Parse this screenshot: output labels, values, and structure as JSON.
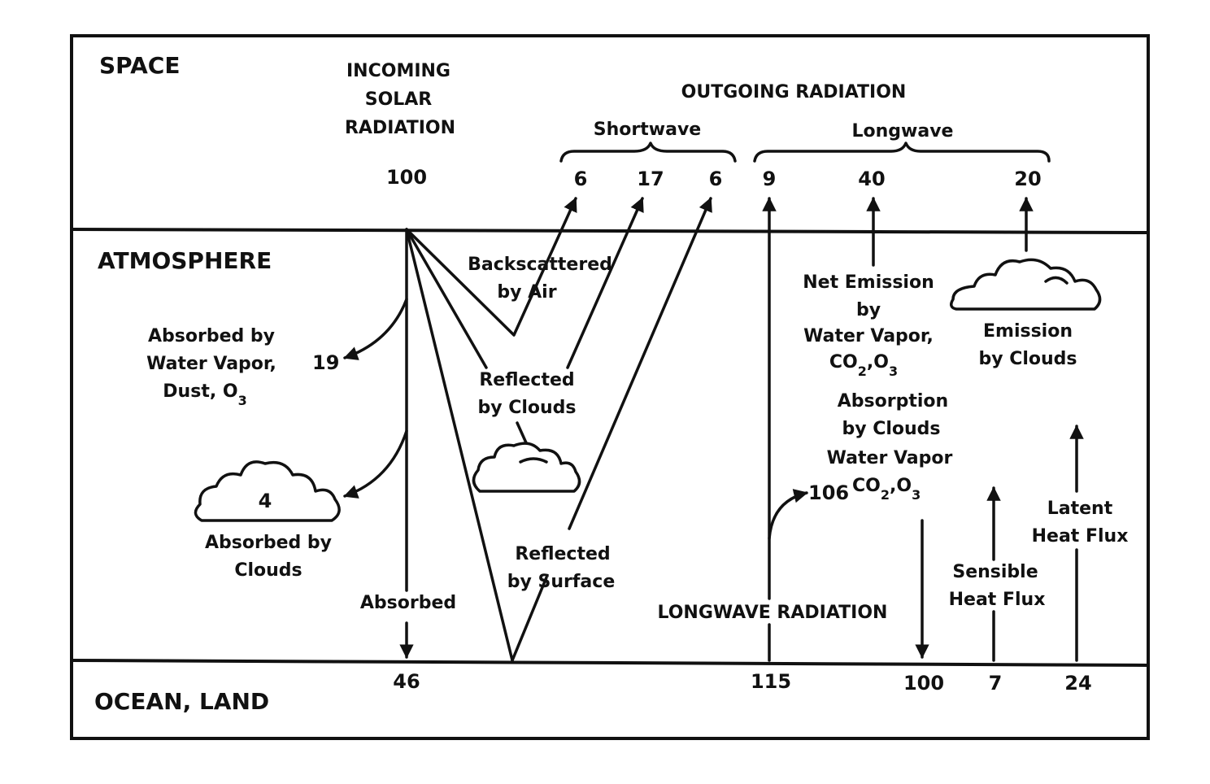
{
  "zones": {
    "space": "SPACE",
    "atmosphere": "ATMOSPHERE",
    "surface": "OCEAN, LAND"
  },
  "incoming": {
    "title": [
      "INCOMING",
      "SOLAR",
      "RADIATION"
    ],
    "value": "100"
  },
  "outgoing": {
    "title": "OUTGOING RADIATION",
    "shortwave": {
      "label": "Shortwave",
      "values": [
        "6",
        "17",
        "6"
      ]
    },
    "longwave": {
      "label": "Longwave",
      "values": [
        "9",
        "40",
        "20"
      ]
    }
  },
  "atmosphere_labels": {
    "backscattered": [
      "Backscattered",
      "by Air"
    ],
    "reflected_clouds": [
      "Reflected",
      "by Clouds"
    ],
    "absorbed_vapor": [
      "Absorbed by",
      "Water Vapor,",
      "Dust, O"
    ],
    "absorbed_vapor_sub": "3",
    "absorbed_vapor_value": "19",
    "cloud_absorbed_value": "4",
    "absorbed_clouds": [
      "Absorbed by",
      "Clouds"
    ],
    "absorbed": "Absorbed",
    "reflected_surface": [
      "Reflected",
      "by Surface"
    ],
    "net_emission": [
      "Net Emission",
      "by",
      "Water Vapor,"
    ],
    "net_emission_chem": {
      "a": "CO",
      "a_sub": "2",
      "b": ",O",
      "b_sub": "3"
    },
    "emission_clouds": [
      "Emission",
      "by Clouds"
    ],
    "absorption_clouds": [
      "Absorption",
      "by Clouds",
      "Water Vapor"
    ],
    "absorption_value": "106",
    "absorption_chem": {
      "a": "CO",
      "a_sub": "2",
      "b": ",O",
      "b_sub": "3"
    },
    "longwave_radiation": "LONGWAVE RADIATION",
    "sensible_heat": [
      "Sensible",
      "Heat Flux"
    ],
    "latent_heat": [
      "Latent",
      "Heat Flux"
    ]
  },
  "surface_values": {
    "absorbed": "46",
    "longwave_up": "115",
    "longwave_down": "100",
    "sensible": "7",
    "latent": "24"
  }
}
